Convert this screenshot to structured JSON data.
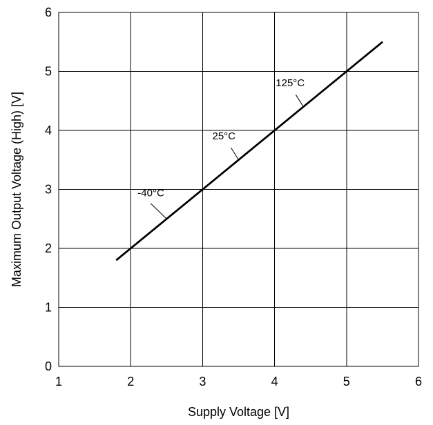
{
  "chart_data": {
    "type": "line",
    "title": "",
    "xlabel": "Supply Voltage [V]",
    "ylabel": "Maximum Output Voltage (High) [V]",
    "xlim": [
      1,
      6
    ],
    "ylim": [
      0,
      6
    ],
    "x_ticks": [
      1,
      2,
      3,
      4,
      5,
      6
    ],
    "y_ticks": [
      0,
      1,
      2,
      3,
      4,
      5,
      6
    ],
    "grid": true,
    "series": [
      {
        "name": "-40°C",
        "x": [
          1.8,
          5.5
        ],
        "y": [
          1.8,
          5.5
        ]
      },
      {
        "name": "25°C",
        "x": [
          1.8,
          5.5
        ],
        "y": [
          1.8,
          5.5
        ]
      },
      {
        "name": "125°C",
        "x": [
          1.8,
          5.5
        ],
        "y": [
          1.8,
          5.5
        ]
      }
    ],
    "annotations": [
      {
        "text": "-40°C",
        "x": 2.5,
        "y": 2.5
      },
      {
        "text": "25°C",
        "x": 3.5,
        "y": 3.5
      },
      {
        "text": "125°C",
        "x": 4.4,
        "y": 4.4
      }
    ],
    "colors": {
      "line": "#000000",
      "grid": "#000000",
      "background": "#ffffff"
    }
  }
}
